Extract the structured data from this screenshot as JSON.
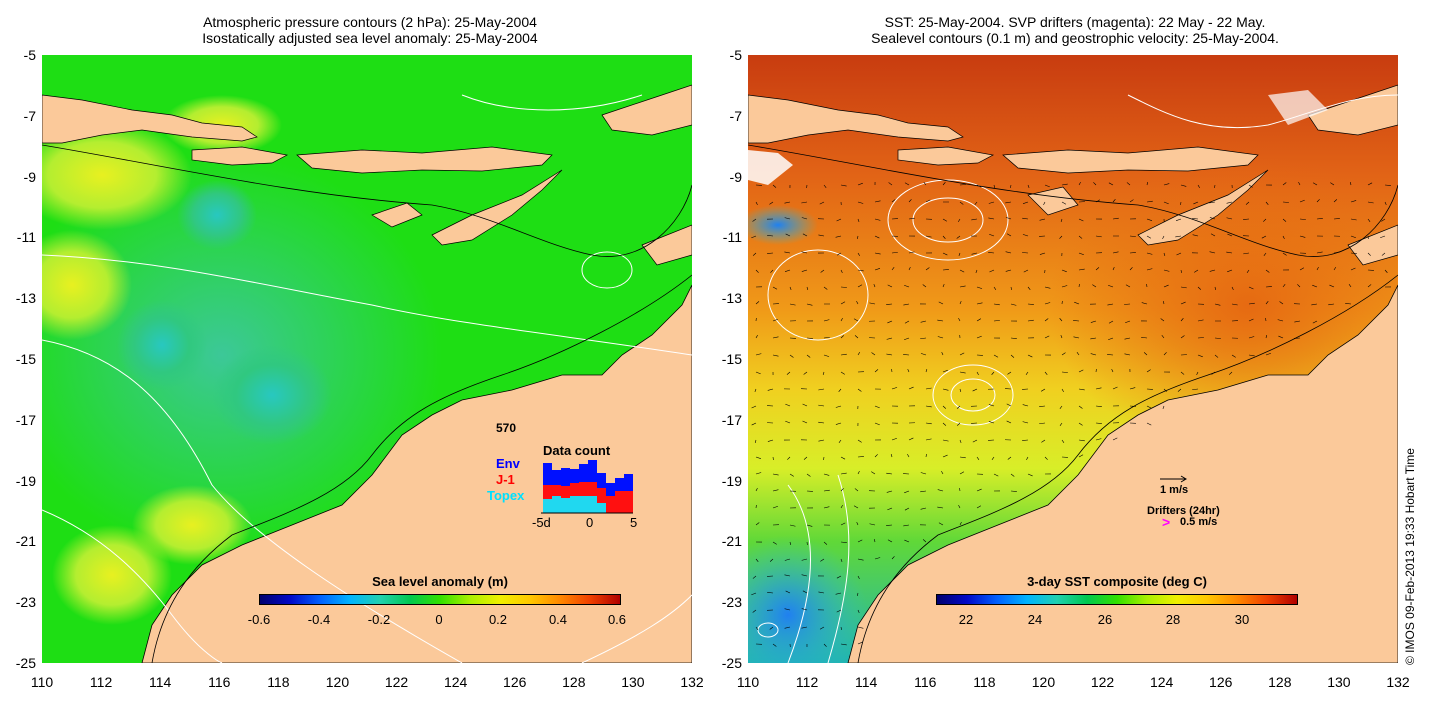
{
  "left_panel": {
    "title_line1": "Atmospheric pressure contours (2 hPa): 25-May-2004",
    "title_line2": "Isostatically adjusted sea level anomaly: 25-May-2004",
    "colorbar": {
      "title": "Sea level anomaly (m)",
      "ticks": [
        "-0.6",
        "-0.4",
        "-0.2",
        "0",
        "0.2",
        "0.4",
        "0.6"
      ]
    },
    "data_count": {
      "title": "Data count",
      "total": "570",
      "legend": [
        {
          "label": "Env",
          "color": "#0000ff"
        },
        {
          "label": "J-1",
          "color": "#ff0000"
        },
        {
          "label": "Topex",
          "color": "#00e0ff"
        }
      ],
      "x_ticks": [
        "-5d",
        "0",
        "5"
      ]
    }
  },
  "right_panel": {
    "title_line1": "SST: 25-May-2004. SVP drifters (magenta): 22 May - 22 May.",
    "title_line2": "Sealevel contours (0.1 m) and geostrophic velocity: 25-May-2004.",
    "colorbar": {
      "title": "3-day SST composite (deg C)",
      "ticks": [
        "22",
        "24",
        "26",
        "28",
        "30"
      ]
    },
    "velocity_scale": "1 m/s",
    "drifters_label": "Drifters (24hr)",
    "drifter_scale": "0.5 m/s"
  },
  "axes": {
    "y_ticks": [
      "-5",
      "-7",
      "-9",
      "-11",
      "-13",
      "-15",
      "-17",
      "-19",
      "-21",
      "-23",
      "-25"
    ],
    "x_ticks": [
      "110",
      "112",
      "114",
      "116",
      "118",
      "120",
      "122",
      "124",
      "126",
      "128",
      "130",
      "132"
    ]
  },
  "credit": "© IMOS 09-Feb-2013 19:33 Hobart Time",
  "colors": {
    "land": "#fbc99a",
    "ocean_green": "#22d81e",
    "ocean_orange": "#e56a14",
    "drifter_magenta": "#ff00ff"
  }
}
